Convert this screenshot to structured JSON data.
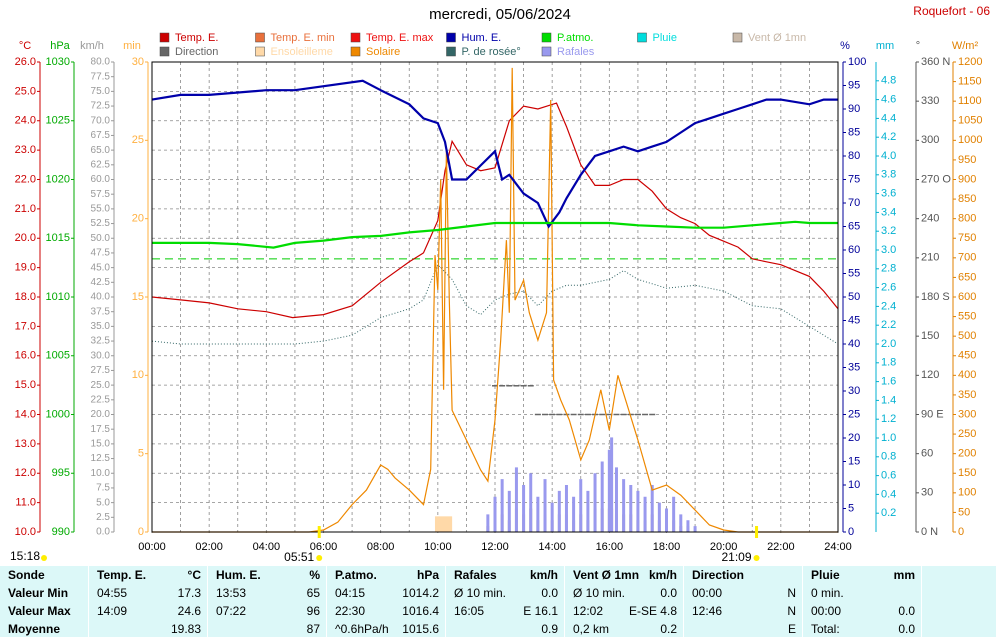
{
  "station": "Roquefort - 06",
  "sun": {
    "now": "15:18",
    "sunrise": "05:51",
    "sunset": "21:09"
  },
  "chart_data": {
    "type": "multi-axis-line",
    "title": "mercredi, 05/06/2024",
    "grid": true,
    "grid_axis": 0,
    "xlim": [
      0,
      24
    ],
    "xticks": [
      {
        "value": 0,
        "label": "00:00"
      },
      {
        "value": 2,
        "label": "02:00"
      },
      {
        "value": 4,
        "label": "04:00"
      },
      {
        "value": 6,
        "label": "06:00"
      },
      {
        "value": 8,
        "label": "08:00"
      },
      {
        "value": 10,
        "label": "10:00"
      },
      {
        "value": 12,
        "label": "12:00"
      },
      {
        "value": 14,
        "label": "14:00"
      },
      {
        "value": 16,
        "label": "16:00"
      },
      {
        "value": 18,
        "label": "18:00"
      },
      {
        "value": 20,
        "label": "20:00"
      },
      {
        "value": 22,
        "label": "22:00"
      },
      {
        "value": 24,
        "label": "24:00"
      }
    ],
    "minor_xticks": [
      1,
      3,
      5,
      7,
      9,
      11,
      13,
      15,
      17,
      19,
      21,
      23
    ],
    "axes": [
      {
        "unit": "°C",
        "color": "#cc0000",
        "lim": [
          10,
          26
        ],
        "ticks": [
          {
            "value": 10,
            "label": "10.0"
          },
          {
            "value": 11,
            "label": "11.0"
          },
          {
            "value": 12,
            "label": "12.0"
          },
          {
            "value": 13,
            "label": "13.0"
          },
          {
            "value": 14,
            "label": "14.0"
          },
          {
            "value": 15,
            "label": "15.0"
          },
          {
            "value": 16,
            "label": "16.0"
          },
          {
            "value": 17,
            "label": "17.0"
          },
          {
            "value": 18,
            "label": "18.0"
          },
          {
            "value": 19,
            "label": "19.0"
          },
          {
            "value": 20,
            "label": "20.0"
          },
          {
            "value": 21,
            "label": "21.0"
          },
          {
            "value": 22,
            "label": "22.0"
          },
          {
            "value": 23,
            "label": "23.0"
          },
          {
            "value": 24,
            "label": "24.0"
          },
          {
            "value": 25,
            "label": "25.0"
          },
          {
            "value": 26,
            "label": "26.0"
          }
        ]
      },
      {
        "unit": "hPa",
        "color": "#00aa00",
        "lim": [
          990,
          1030
        ],
        "ticks": [
          990,
          995,
          1000,
          1005,
          1010,
          1015,
          1020,
          1025,
          1030
        ]
      },
      {
        "unit": "km/h",
        "color": "#999999",
        "lim": [
          0,
          80
        ],
        "ticks": [
          {
            "value": 0,
            "label": "0.0"
          },
          2.5,
          {
            "value": 5,
            "label": "5.0"
          },
          7.5,
          {
            "value": 10,
            "label": "10.0"
          },
          12.5,
          {
            "value": 15,
            "label": "15.0"
          },
          17.5,
          {
            "value": 20,
            "label": "20.0"
          },
          22.5,
          {
            "value": 25,
            "label": "25.0"
          },
          27.5,
          {
            "value": 30,
            "label": "30.0"
          },
          32.5,
          {
            "value": 35,
            "label": "35.0"
          },
          37.5,
          {
            "value": 40,
            "label": "40.0"
          },
          42.5,
          {
            "value": 45,
            "label": "45.0"
          },
          47.5,
          {
            "value": 50,
            "label": "50.0"
          },
          52.5,
          {
            "value": 55,
            "label": "55.0"
          },
          57.5,
          {
            "value": 60,
            "label": "60.0"
          },
          62.5,
          {
            "value": 65,
            "label": "65.0"
          },
          67.5,
          {
            "value": 70,
            "label": "70.0"
          },
          72.5,
          {
            "value": 75,
            "label": "75.0"
          },
          77.5,
          {
            "value": 80,
            "label": "80.0"
          }
        ]
      },
      {
        "unit": "min",
        "color": "#ffb040",
        "lim": [
          0,
          30
        ],
        "ticks": [
          0,
          5,
          10,
          15,
          20,
          25,
          30
        ]
      },
      {
        "unit": "%",
        "color": "#000099",
        "lim": [
          0,
          100
        ],
        "ticks": [
          0,
          5,
          10,
          15,
          20,
          25,
          30,
          35,
          40,
          45,
          50,
          55,
          60,
          65,
          70,
          75,
          80,
          85,
          90,
          95,
          100
        ]
      },
      {
        "unit": "mm",
        "color": "#00b0d0",
        "lim": [
          0,
          5
        ],
        "ticks": [
          0.2,
          0.4,
          0.6,
          0.8,
          {
            "value": 1,
            "label": "1.0"
          },
          1.2,
          1.4,
          1.6,
          1.8,
          {
            "value": 2,
            "label": "2.0"
          },
          2.2,
          2.4,
          2.6,
          2.8,
          {
            "value": 3,
            "label": "3.0"
          },
          3.2,
          3.4,
          3.6,
          3.8,
          {
            "value": 4,
            "label": "4.0"
          },
          4.2,
          4.4,
          4.6,
          4.8
        ]
      },
      {
        "unit": "°",
        "color": "#555555",
        "lim": [
          0,
          360
        ],
        "ticks": [
          {
            "value": 0,
            "label": "0 N"
          },
          30,
          60,
          {
            "value": 90,
            "label": "90 E"
          },
          120,
          150,
          {
            "value": 180,
            "label": "180 S"
          },
          210,
          240,
          {
            "value": 270,
            "label": "270 O"
          },
          300,
          330,
          {
            "value": 360,
            "label": "360 N"
          }
        ]
      },
      {
        "unit": "W/m²",
        "color": "#e08000",
        "lim": [
          0,
          1200
        ],
        "ticks": [
          0,
          50,
          100,
          150,
          200,
          250,
          300,
          350,
          400,
          450,
          500,
          550,
          600,
          650,
          700,
          750,
          800,
          850,
          900,
          950,
          1000,
          1050,
          1100,
          1150,
          1200
        ]
      }
    ],
    "reference_lines": [
      {
        "axis": 1,
        "value": 1013.25,
        "color": "#00cc00"
      }
    ],
    "series": [
      {
        "name": "Temp. E.",
        "color": "#cc0000",
        "axis": 0,
        "style": "line",
        "x": [
          0,
          1,
          2,
          3,
          4,
          4.92,
          6,
          7,
          8,
          9,
          9.5,
          10,
          10.25,
          10.5,
          11,
          11.5,
          12,
          12.5,
          13,
          13.5,
          14.15,
          14.5,
          15,
          15.5,
          16,
          16.5,
          17,
          17.5,
          18,
          18.5,
          19,
          19.5,
          20,
          20.5,
          21,
          21.5,
          22,
          22.5,
          23,
          23.5,
          24
        ],
        "values": [
          18.0,
          17.9,
          17.8,
          17.6,
          17.5,
          17.3,
          17.4,
          17.7,
          18.5,
          19.2,
          19.5,
          20.6,
          22.3,
          23.3,
          22.5,
          22.3,
          22.4,
          24.0,
          24.5,
          24.4,
          24.6,
          23.8,
          22.5,
          21.8,
          21.8,
          22.0,
          22.0,
          21.6,
          21.0,
          20.7,
          20.5,
          20.1,
          19.9,
          19.7,
          19.3,
          19.2,
          19.1,
          18.9,
          18.7,
          18.2,
          17.6
        ]
      },
      {
        "name": "Temp. E. min",
        "color": "#e8703c",
        "axis": 0,
        "style": "line",
        "x": [],
        "values": []
      },
      {
        "name": "Temp. E. max",
        "color": "#ee1111",
        "axis": 0,
        "style": "line",
        "x": [],
        "values": []
      },
      {
        "name": "Hum. E.",
        "color": "#0000aa",
        "axis": 4,
        "style": "thick-line",
        "x": [
          0,
          1,
          2,
          4,
          5,
          7.37,
          8,
          9,
          9.5,
          10,
          10.25,
          10.5,
          11,
          11.5,
          12,
          12.25,
          12.5,
          13,
          13.5,
          13.88,
          14.25,
          14.5,
          15,
          15.5,
          16,
          16.5,
          17,
          17.5,
          18,
          18.5,
          19,
          19.5,
          20,
          20.5,
          21,
          21.5,
          22,
          23,
          23.5,
          24
        ],
        "values": [
          92,
          93,
          93,
          94,
          94,
          96,
          94,
          91,
          88,
          87,
          83,
          75,
          75,
          78,
          81,
          75,
          76,
          72,
          70,
          65,
          68,
          71,
          76,
          80,
          81,
          82,
          81,
          82,
          83,
          85,
          87,
          88,
          89,
          90,
          91,
          92,
          92,
          91,
          92,
          92
        ]
      },
      {
        "name": "P.atmo.",
        "color": "#00dd00",
        "axis": 1,
        "style": "thick-line",
        "x": [
          0,
          2,
          3,
          4.25,
          5,
          6,
          7,
          8,
          9,
          10,
          11,
          12,
          13,
          14,
          15,
          16,
          17,
          18,
          19,
          20,
          21,
          22,
          22.5,
          23,
          24
        ],
        "values": [
          1014.6,
          1014.6,
          1014.5,
          1014.2,
          1014.6,
          1014.8,
          1015.1,
          1015.2,
          1015.5,
          1015.7,
          1016.0,
          1016.3,
          1016.3,
          1016.3,
          1016.3,
          1016.3,
          1016.1,
          1016.0,
          1015.9,
          1015.9,
          1016.1,
          1016.3,
          1016.4,
          1016.3,
          1016.3
        ]
      },
      {
        "name": "Pluie",
        "color": "#00dddd",
        "axis": 5,
        "style": "bars",
        "x": [],
        "values": []
      },
      {
        "name": "Vent Ø 1mn",
        "color": "#c8b8a8",
        "axis": 2,
        "style": "bars",
        "x": [
          11.75,
          12,
          12.25,
          12.5,
          12.75,
          13,
          13.25,
          13.5,
          13.75,
          14,
          14.25,
          14.5,
          14.75,
          15,
          15.25,
          15.5,
          15.75,
          16,
          16.08,
          16.25,
          16.5,
          16.75,
          17,
          17.25,
          17.5,
          17.75,
          18,
          18.25,
          18.5,
          18.75,
          19
        ],
        "values": [
          1,
          4.8,
          3,
          2,
          4,
          3,
          4,
          2,
          3,
          2,
          3,
          3,
          2,
          3,
          2,
          4,
          4,
          4,
          4,
          3,
          3,
          3,
          2,
          2,
          3,
          2,
          1,
          2,
          1,
          1,
          0
        ]
      },
      {
        "name": "Direction",
        "color": "#666666",
        "axis": 6,
        "style": "dashes",
        "x": [
          12,
          12.25,
          12.5,
          12.75,
          13,
          13.25,
          13.5,
          13.75,
          14,
          14.25,
          14.5,
          14.75,
          15,
          15.25,
          15.5,
          15.75,
          16,
          16.25,
          16.5,
          16.75,
          17,
          17.25,
          17.5
        ],
        "values": [
          112,
          112,
          112,
          112,
          112,
          112,
          90,
          90,
          90,
          90,
          90,
          90,
          90,
          90,
          90,
          90,
          90,
          90,
          90,
          90,
          90,
          90,
          90
        ]
      },
      {
        "name": "Ensoleilleme",
        "color": "#ffd9a8",
        "axis": 3,
        "style": "hist",
        "bins": [
          9.9,
          10.5
        ],
        "values": [
          1
        ]
      },
      {
        "name": "Solaire",
        "color": "#ee8800",
        "axis": 7,
        "style": "line",
        "x": [
          0,
          5.5,
          6,
          6.5,
          7,
          7.5,
          8,
          8.25,
          8.5,
          9,
          9.5,
          9.75,
          9.9,
          10,
          10.1,
          10.2,
          10.3,
          10.4,
          10.5,
          11,
          11.5,
          11.75,
          12,
          12.2,
          12.4,
          12.5,
          12.6,
          12.7,
          13,
          13.2,
          13.5,
          13.8,
          13.95,
          14.05,
          14.3,
          14.6,
          15,
          15.3,
          15.7,
          16,
          16.3,
          16.6,
          17,
          17.5,
          18,
          18.5,
          19,
          19.5,
          20,
          20.5,
          24
        ],
        "values": [
          0,
          0,
          5,
          25,
          70,
          107,
          171,
          160,
          138,
          107,
          70,
          160,
          707,
          618,
          900,
          363,
          975,
          592,
          311,
          235,
          158,
          130,
          286,
          490,
          745,
          560,
          1185,
          592,
          643,
          560,
          490,
          560,
          1103,
          388,
          337,
          286,
          184,
          235,
          363,
          260,
          400,
          330,
          235,
          107,
          120,
          94,
          56,
          18,
          5,
          0,
          0
        ]
      },
      {
        "name": "P. de rosée°",
        "color": "#336666",
        "axis": 0,
        "style": "dotted-line",
        "x": [
          0,
          1,
          3,
          5,
          6,
          7,
          8,
          9,
          9.5,
          10,
          10.5,
          11,
          11.5,
          12,
          12.5,
          13,
          13.5,
          14,
          14.5,
          15,
          16,
          16.5,
          17,
          18,
          19,
          20,
          21,
          22,
          23,
          24
        ],
        "values": [
          16.5,
          16.4,
          16.4,
          16.4,
          16.5,
          16.7,
          17.3,
          17.6,
          17.9,
          19.1,
          18.6,
          17.7,
          17.4,
          17.9,
          18.1,
          18.2,
          17.7,
          18.2,
          18.4,
          18.4,
          18.6,
          18.9,
          18.6,
          18.3,
          18.4,
          18.2,
          17.7,
          17.6,
          17.0,
          16.4
        ]
      },
      {
        "name": "Rafales",
        "color": "#9999ee",
        "axis": 2,
        "style": "bars",
        "x": [
          11.75,
          12,
          12.25,
          12.5,
          12.75,
          13,
          13.25,
          13.5,
          13.75,
          14,
          14.25,
          14.5,
          14.75,
          15,
          15.25,
          15.5,
          15.75,
          16,
          16.08,
          16.25,
          16.5,
          16.75,
          17,
          17.25,
          17.5,
          17.75,
          18,
          18.25,
          18.5,
          18.75,
          19
        ],
        "values": [
          3,
          6,
          9,
          7,
          11,
          8,
          10,
          6,
          9,
          5,
          7,
          8,
          6,
          9,
          7,
          10,
          12,
          14,
          16.1,
          11,
          9,
          8,
          7,
          6,
          8,
          5,
          4,
          6,
          3,
          2,
          1
        ]
      }
    ]
  },
  "table": {
    "columns": [
      [
        "Sonde",
        null
      ],
      [
        "Temp. E.",
        "°C"
      ],
      [
        "Hum. E.",
        "%"
      ],
      [
        "P.atmo.",
        "hPa"
      ],
      [
        "Rafales",
        "km/h"
      ],
      [
        "Vent Ø 1mn",
        "km/h"
      ],
      [
        "Direction",
        null
      ],
      [
        "Pluie",
        "mm"
      ]
    ],
    "rows": [
      [
        [
          "Valeur Min",
          null
        ],
        [
          "04:55",
          "17.3"
        ],
        [
          "13:53",
          "65"
        ],
        [
          "04:15",
          "1014.2"
        ],
        [
          "Ø 10 min.",
          "0.0"
        ],
        [
          "Ø 10 min.",
          "0.0"
        ],
        [
          "00:00",
          "N"
        ],
        [
          "0 min.",
          null
        ]
      ],
      [
        [
          "Valeur Max",
          null
        ],
        [
          "14:09",
          "24.6"
        ],
        [
          "07:22",
          "96"
        ],
        [
          "22:30",
          "1016.4"
        ],
        [
          "16:05",
          "E 16.1"
        ],
        [
          "12:02",
          "E-SE 4.8"
        ],
        [
          "12:46",
          "N"
        ],
        [
          "00:00",
          "0.0"
        ]
      ],
      [
        [
          "Moyenne",
          null
        ],
        [
          null,
          "19.83"
        ],
        [
          null,
          "87"
        ],
        [
          "^0.6hPa/h",
          "1015.6"
        ],
        [
          null,
          "0.9"
        ],
        [
          "0,2 km",
          "0.2"
        ],
        [
          null,
          "E"
        ],
        [
          "Total:",
          "0.0"
        ]
      ]
    ]
  }
}
